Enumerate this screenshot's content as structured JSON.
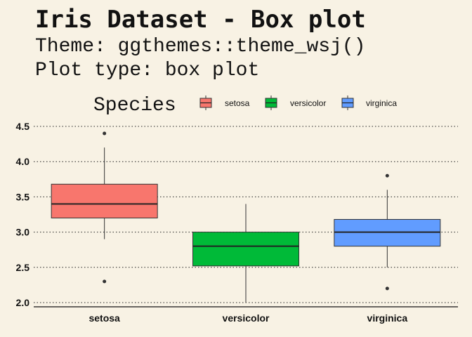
{
  "page": {
    "title": "Iris Dataset - Box plot",
    "subtitle_lines": [
      "Theme: ggthemes::theme_wsj()",
      "Plot type: box plot"
    ]
  },
  "chart_data": {
    "type": "box",
    "title": "Iris Dataset - Box plot",
    "legend": {
      "title": "Species",
      "placement": "top"
    },
    "categories": [
      "setosa",
      "versicolor",
      "virginica"
    ],
    "colors": [
      "#f8766d",
      "#00ba38",
      "#619cff"
    ],
    "ylim": [
      1.95,
      4.55
    ],
    "yticks": [
      2.0,
      2.5,
      3.0,
      3.5,
      4.0,
      4.5
    ],
    "ytick_labels": [
      "2.0",
      "2.5",
      "3.0",
      "3.5",
      "4.0",
      "4.5"
    ],
    "grid": "horizontal-dotted",
    "boxes": [
      {
        "name": "setosa",
        "whisker_low": 2.9,
        "q1": 3.2,
        "median": 3.4,
        "q3": 3.68,
        "whisker_high": 4.2,
        "outliers": [
          4.4,
          2.3
        ]
      },
      {
        "name": "versicolor",
        "whisker_low": 2.0,
        "q1": 2.52,
        "median": 2.8,
        "q3": 3.0,
        "whisker_high": 3.4,
        "outliers": []
      },
      {
        "name": "virginica",
        "whisker_low": 2.5,
        "q1": 2.8,
        "median": 3.0,
        "q3": 3.18,
        "whisker_high": 3.6,
        "outliers": [
          3.8,
          2.2
        ]
      }
    ]
  }
}
